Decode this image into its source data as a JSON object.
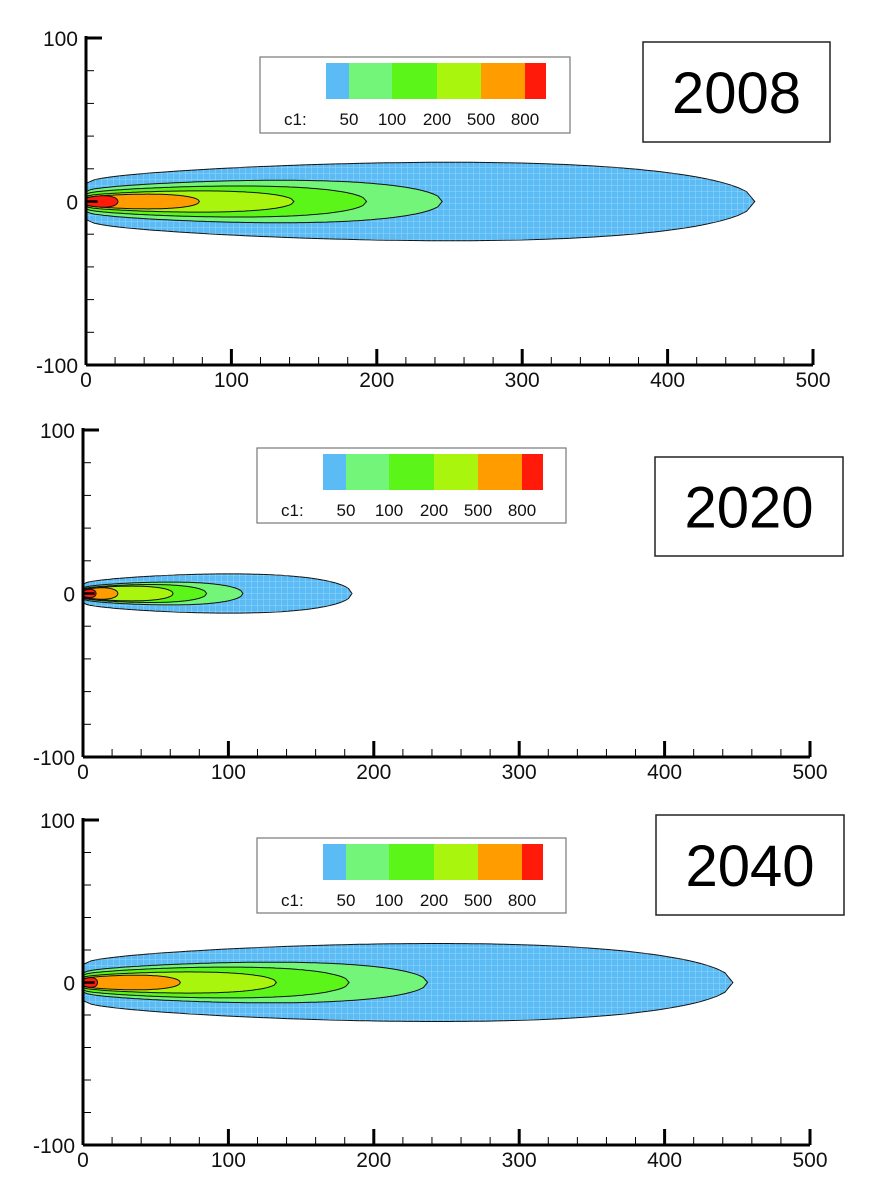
{
  "chart_data": [
    {
      "type": "contour",
      "title": "2008",
      "xlim": [
        0,
        500
      ],
      "ylim": [
        -100,
        100
      ],
      "x_ticks": [
        "0",
        "100",
        "200",
        "300",
        "400",
        "500"
      ],
      "y_ticks": [
        "100",
        "0",
        "-100"
      ],
      "legend": {
        "variable": "c1:",
        "levels": [
          "50",
          "100",
          "200",
          "500",
          "800"
        ]
      },
      "regions": [
        {
          "color": "#5bbcf5",
          "x_extent": 460,
          "half_width": 24
        },
        {
          "color": "#73f57a",
          "x_extent": 245,
          "half_width": 13
        },
        {
          "color": "#5cf51a",
          "x_extent": 193,
          "half_width": 9.5
        },
        {
          "color": "#aaf50e",
          "x_extent": 143,
          "half_width": 6.5
        },
        {
          "color": "#ff9d00",
          "x_extent": 78,
          "half_width": 4.5
        },
        {
          "color": "#ff1a0a",
          "x_extent": 22,
          "half_width": 3.5
        }
      ]
    },
    {
      "type": "contour",
      "title": "2020",
      "xlim": [
        0,
        500
      ],
      "ylim": [
        -100,
        100
      ],
      "x_ticks": [
        "0",
        "100",
        "200",
        "300",
        "400",
        "500"
      ],
      "y_ticks": [
        "100",
        "0",
        "-100"
      ],
      "legend": {
        "variable": "c1:",
        "levels": [
          "50",
          "100",
          "200",
          "500",
          "800"
        ]
      },
      "regions": [
        {
          "color": "#5bbcf5",
          "x_extent": 185,
          "half_width": 12
        },
        {
          "color": "#73f57a",
          "x_extent": 110,
          "half_width": 7
        },
        {
          "color": "#5cf51a",
          "x_extent": 85,
          "half_width": 5.5
        },
        {
          "color": "#aaf50e",
          "x_extent": 62,
          "half_width": 4.5
        },
        {
          "color": "#ff9d00",
          "x_extent": 24,
          "half_width": 3.5
        },
        {
          "color": "#ff1a0a",
          "x_extent": 9,
          "half_width": 2.5
        }
      ]
    },
    {
      "type": "contour",
      "title": "2040",
      "xlim": [
        0,
        500
      ],
      "ylim": [
        -100,
        100
      ],
      "x_ticks": [
        "0",
        "100",
        "200",
        "300",
        "400",
        "500"
      ],
      "y_ticks": [
        "100",
        "0",
        "-100"
      ],
      "legend": {
        "variable": "c1:",
        "levels": [
          "50",
          "100",
          "200",
          "500",
          "800"
        ]
      },
      "regions": [
        {
          "color": "#5bbcf5",
          "x_extent": 447,
          "half_width": 24
        },
        {
          "color": "#73f57a",
          "x_extent": 237,
          "half_width": 12.5
        },
        {
          "color": "#5cf51a",
          "x_extent": 183,
          "half_width": 9.5
        },
        {
          "color": "#aaf50e",
          "x_extent": 133,
          "half_width": 6.5
        },
        {
          "color": "#ff9d00",
          "x_extent": 67,
          "half_width": 4.5
        },
        {
          "color": "#ff1a0a",
          "x_extent": 10,
          "half_width": 3
        }
      ]
    }
  ],
  "legend_colors": [
    "#5bbcf5",
    "#73f57a",
    "#5cf51a",
    "#aaf50e",
    "#ff9d00",
    "#ff1a0a"
  ]
}
